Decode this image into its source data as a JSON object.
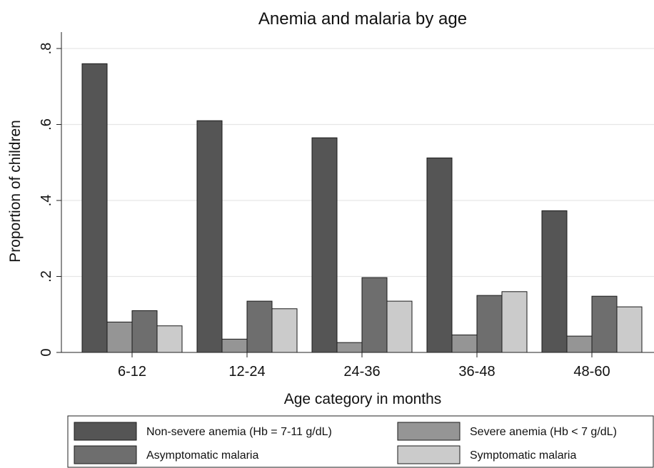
{
  "chart_data": {
    "type": "bar",
    "title": "Anemia and malaria by age",
    "xlabel": "Age category in months",
    "ylabel": "Proportion of children",
    "categories": [
      "6-12",
      "12-24",
      "24-36",
      "36-48",
      "48-60"
    ],
    "y_ticks": [
      0,
      0.2,
      0.4,
      0.6,
      0.8
    ],
    "y_tick_labels": [
      "0",
      ".2",
      ".4",
      ".6",
      ".8"
    ],
    "ylim": [
      0,
      0.8
    ],
    "grid": true,
    "legend_position": "bottom",
    "series": [
      {
        "name": "Non-severe anemia (Hb = 7-11 g/dL)",
        "color": "#555555",
        "values": [
          0.76,
          0.61,
          0.565,
          0.512,
          0.373
        ]
      },
      {
        "name": "Severe anemia (Hb < 7 g/dL)",
        "color": "#959595",
        "values": [
          0.08,
          0.035,
          0.026,
          0.046,
          0.043
        ]
      },
      {
        "name": "Asymptomatic malaria",
        "color": "#6e6e6e",
        "values": [
          0.11,
          0.135,
          0.197,
          0.15,
          0.148
        ]
      },
      {
        "name": "Symptomatic malaria",
        "color": "#cbcbcb",
        "values": [
          0.07,
          0.115,
          0.135,
          0.16,
          0.12
        ]
      }
    ]
  }
}
